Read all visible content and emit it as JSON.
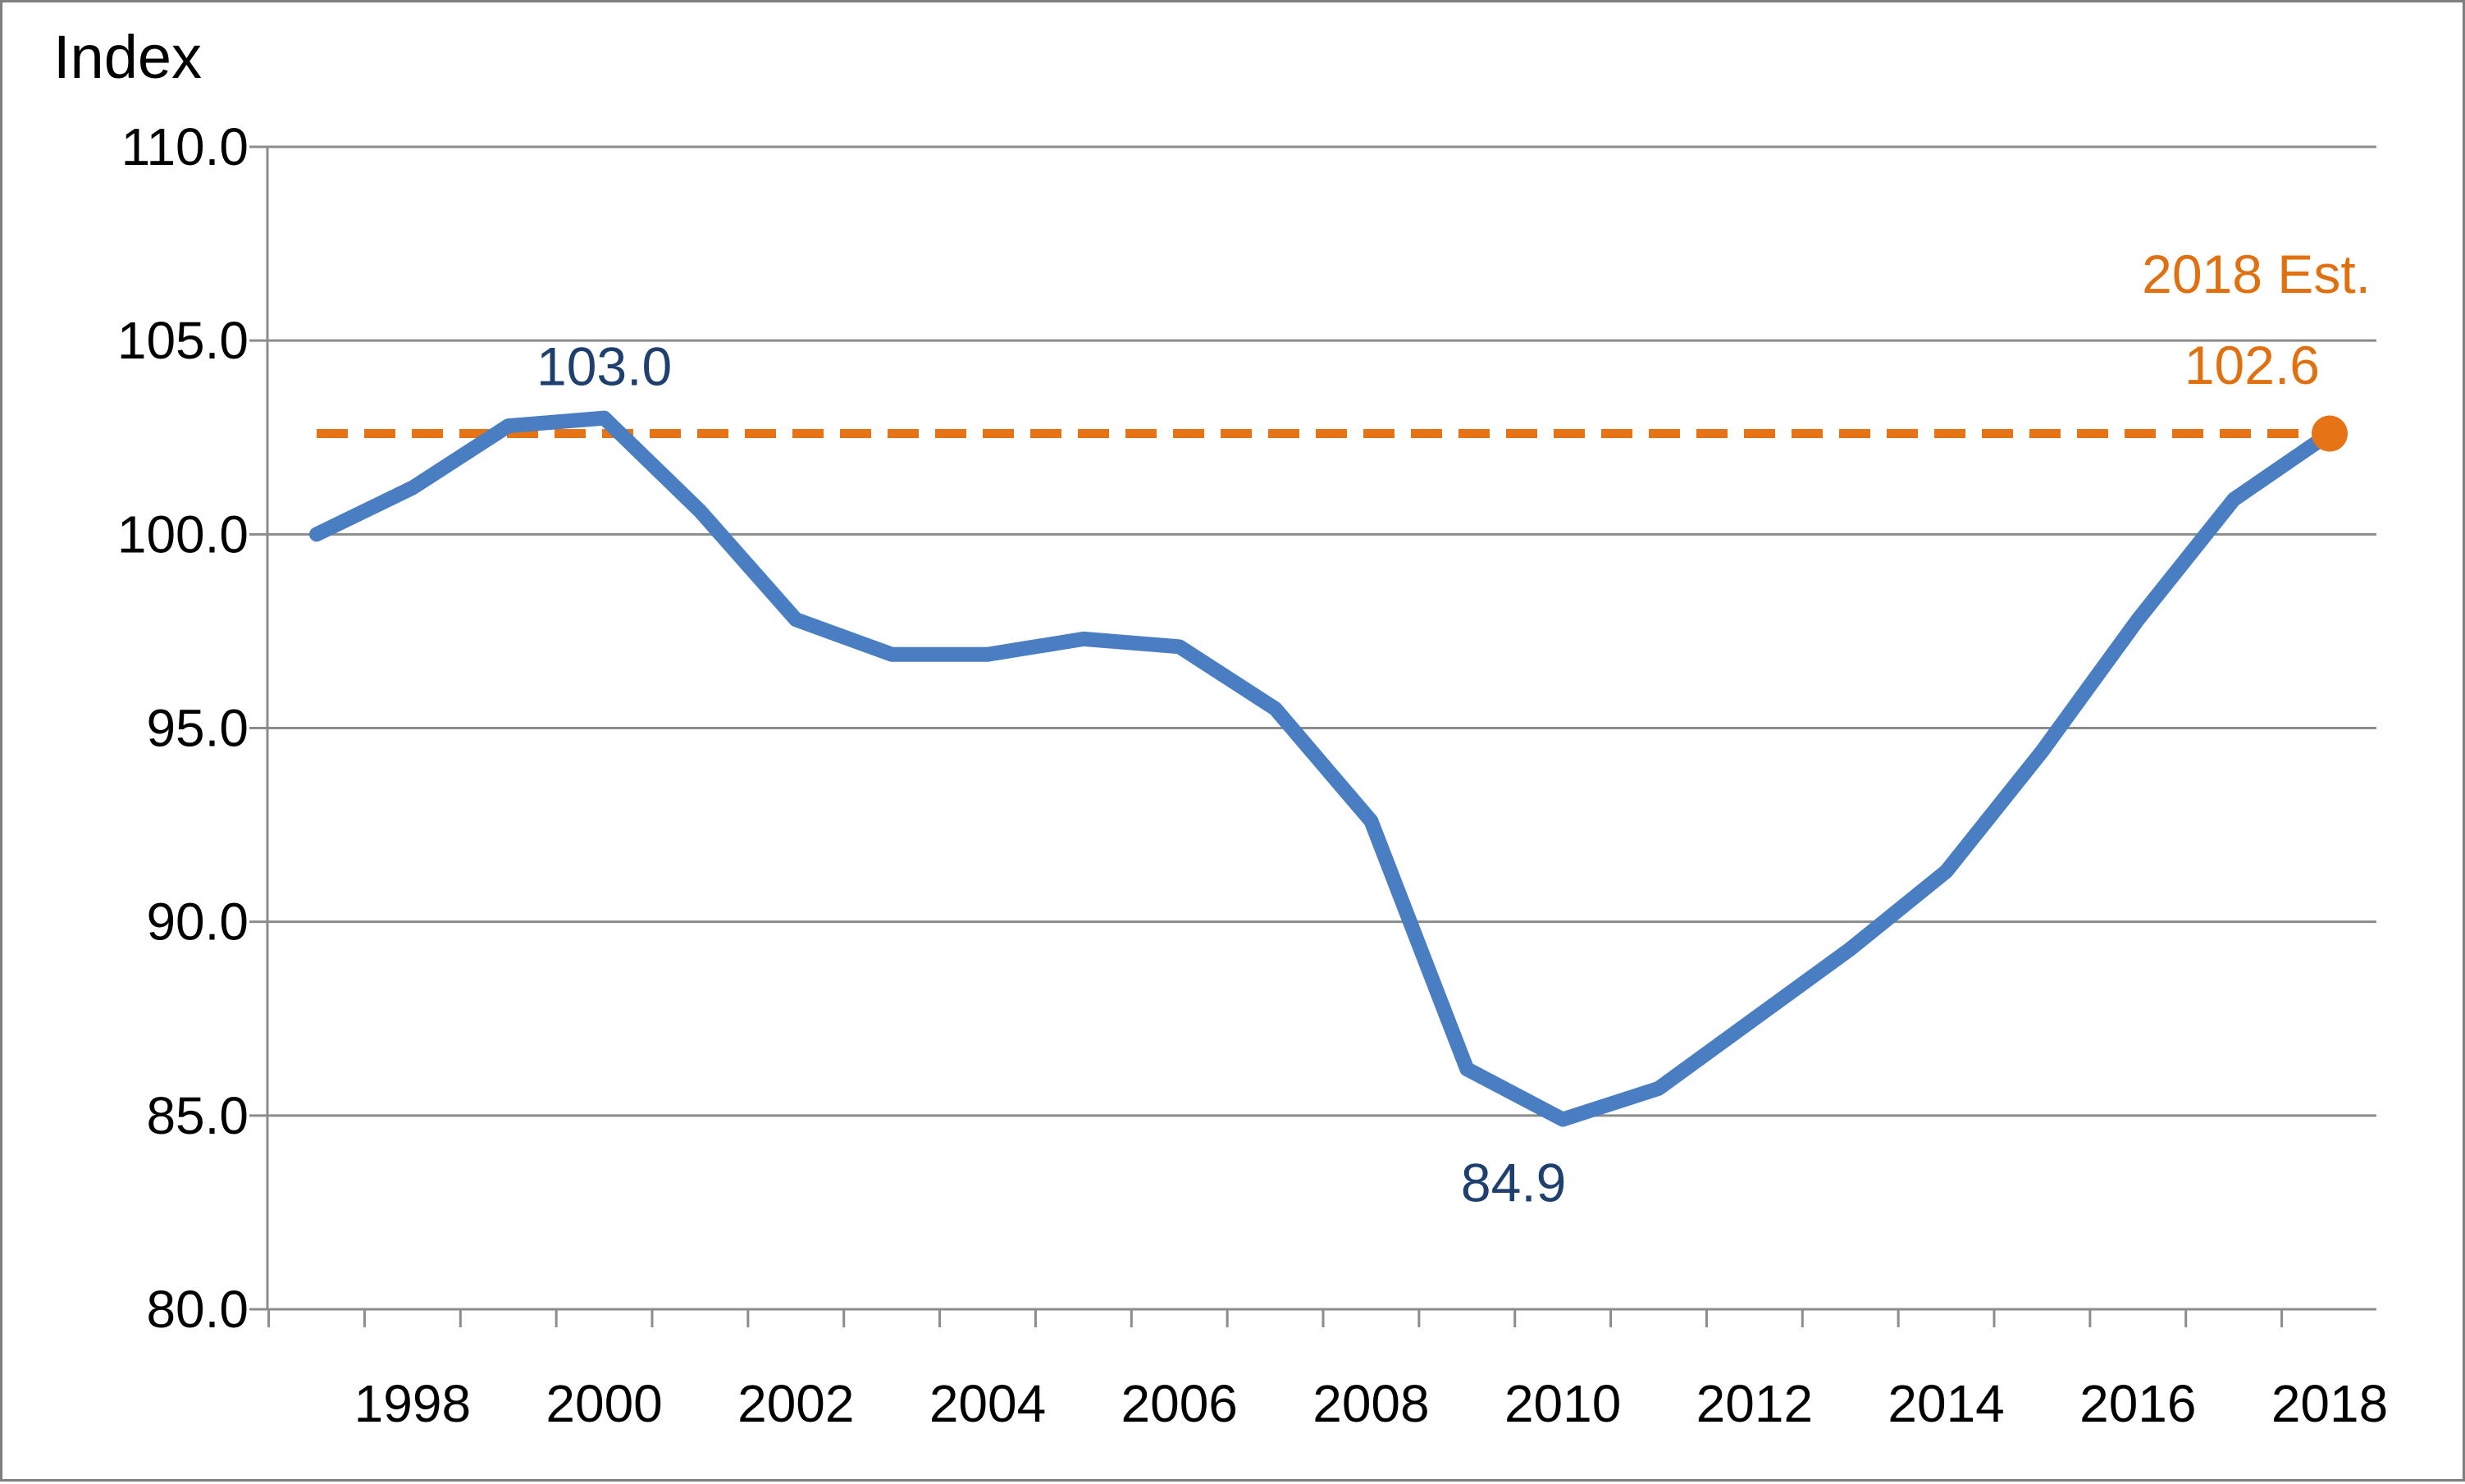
{
  "chart_data": {
    "type": "line",
    "ylabel": "Index",
    "ylim": [
      80.0,
      110.0
    ],
    "yticks": [
      "80.0",
      "85.0",
      "90.0",
      "95.0",
      "100.0",
      "105.0",
      "110.0"
    ],
    "xticks": [
      "1998",
      "2000",
      "2002",
      "2004",
      "2006",
      "2008",
      "2010",
      "2012",
      "2014",
      "2016",
      "2018"
    ],
    "grid": "horizontal",
    "series": [
      {
        "x": [
          "1997",
          "1998",
          "1999",
          "2000",
          "2001",
          "2002",
          "2003",
          "2004",
          "2005",
          "2006",
          "2007",
          "2008",
          "2009",
          "2010",
          "2011",
          "2012",
          "2013",
          "2014",
          "2015",
          "2016",
          "2017",
          "2018"
        ],
        "values": [
          100.0,
          101.2,
          102.8,
          103.0,
          100.6,
          97.8,
          96.9,
          96.9,
          97.3,
          97.1,
          95.5,
          92.6,
          86.2,
          84.9,
          85.7,
          87.5,
          89.3,
          91.3,
          94.4,
          97.8,
          100.9,
          102.6
        ],
        "color": "#4a7ec2"
      },
      {
        "x": [
          "1997",
          "2018"
        ],
        "values": [
          102.6,
          102.6
        ],
        "color": "#e67417",
        "style": "dashed"
      }
    ],
    "annotations": [
      {
        "text": "103.0",
        "x": "2000",
        "y": 103.0,
        "color": "#1f3f6e"
      },
      {
        "text": "84.9",
        "x": "2010",
        "y": 84.9,
        "color": "#1f3f6e"
      },
      {
        "text": "2018 Est.",
        "x": "2018",
        "y": 102.6,
        "color": "#e07010"
      },
      {
        "text": "102.6",
        "x": "2018",
        "y": 102.6,
        "color": "#e07010"
      }
    ]
  }
}
